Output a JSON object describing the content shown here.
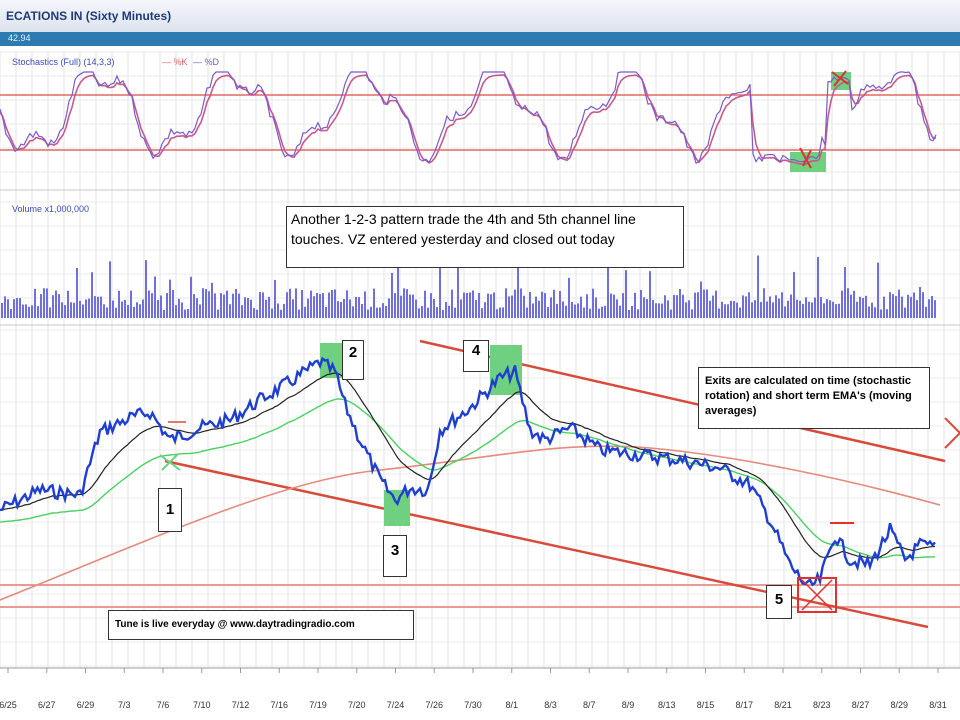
{
  "window": {
    "title": "ECATIONS IN (Sixty Minutes)",
    "info_value": "42.94"
  },
  "chart_data": {
    "type": "line",
    "x_ticks": [
      "6/25",
      "6/27",
      "6/29",
      "7/3",
      "7/6",
      "7/10",
      "7/12",
      "7/16",
      "7/19",
      "7/20",
      "7/24",
      "7/26",
      "7/30",
      "8/1",
      "8/3",
      "8/7",
      "8/9",
      "8/13",
      "8/15",
      "8/17",
      "8/21",
      "8/23",
      "8/27",
      "8/29",
      "8/31"
    ],
    "panels": {
      "stochastic": {
        "title": "Stochastics (Full) (14,3,3)",
        "series": [
          {
            "name": "%K",
            "color": "#e05a5a"
          },
          {
            "name": "%D",
            "color": "#6a5acd"
          }
        ]
      },
      "volume": {
        "title": "Volume x1,000,000"
      },
      "price": {
        "series": [
          {
            "color": "#1f3fd1"
          },
          {
            "color": "#222222"
          },
          {
            "color": "#44cc55"
          },
          {
            "color": "#e07a70"
          }
        ]
      }
    },
    "annotations": [
      {
        "label": "1"
      },
      {
        "label": "2"
      },
      {
        "label": "3"
      },
      {
        "label": "4"
      },
      {
        "label": "5"
      }
    ]
  },
  "callouts": {
    "main": "Another 1-2-3 pattern trade the 4th and 5th channel line touches. VZ entered yesterday and closed out today",
    "exits": "Exits are calculated on time (stochastic rotation) and short term EMA's (moving averages)",
    "tune": "Tune is live everyday @ www.daytradingradio.com"
  }
}
